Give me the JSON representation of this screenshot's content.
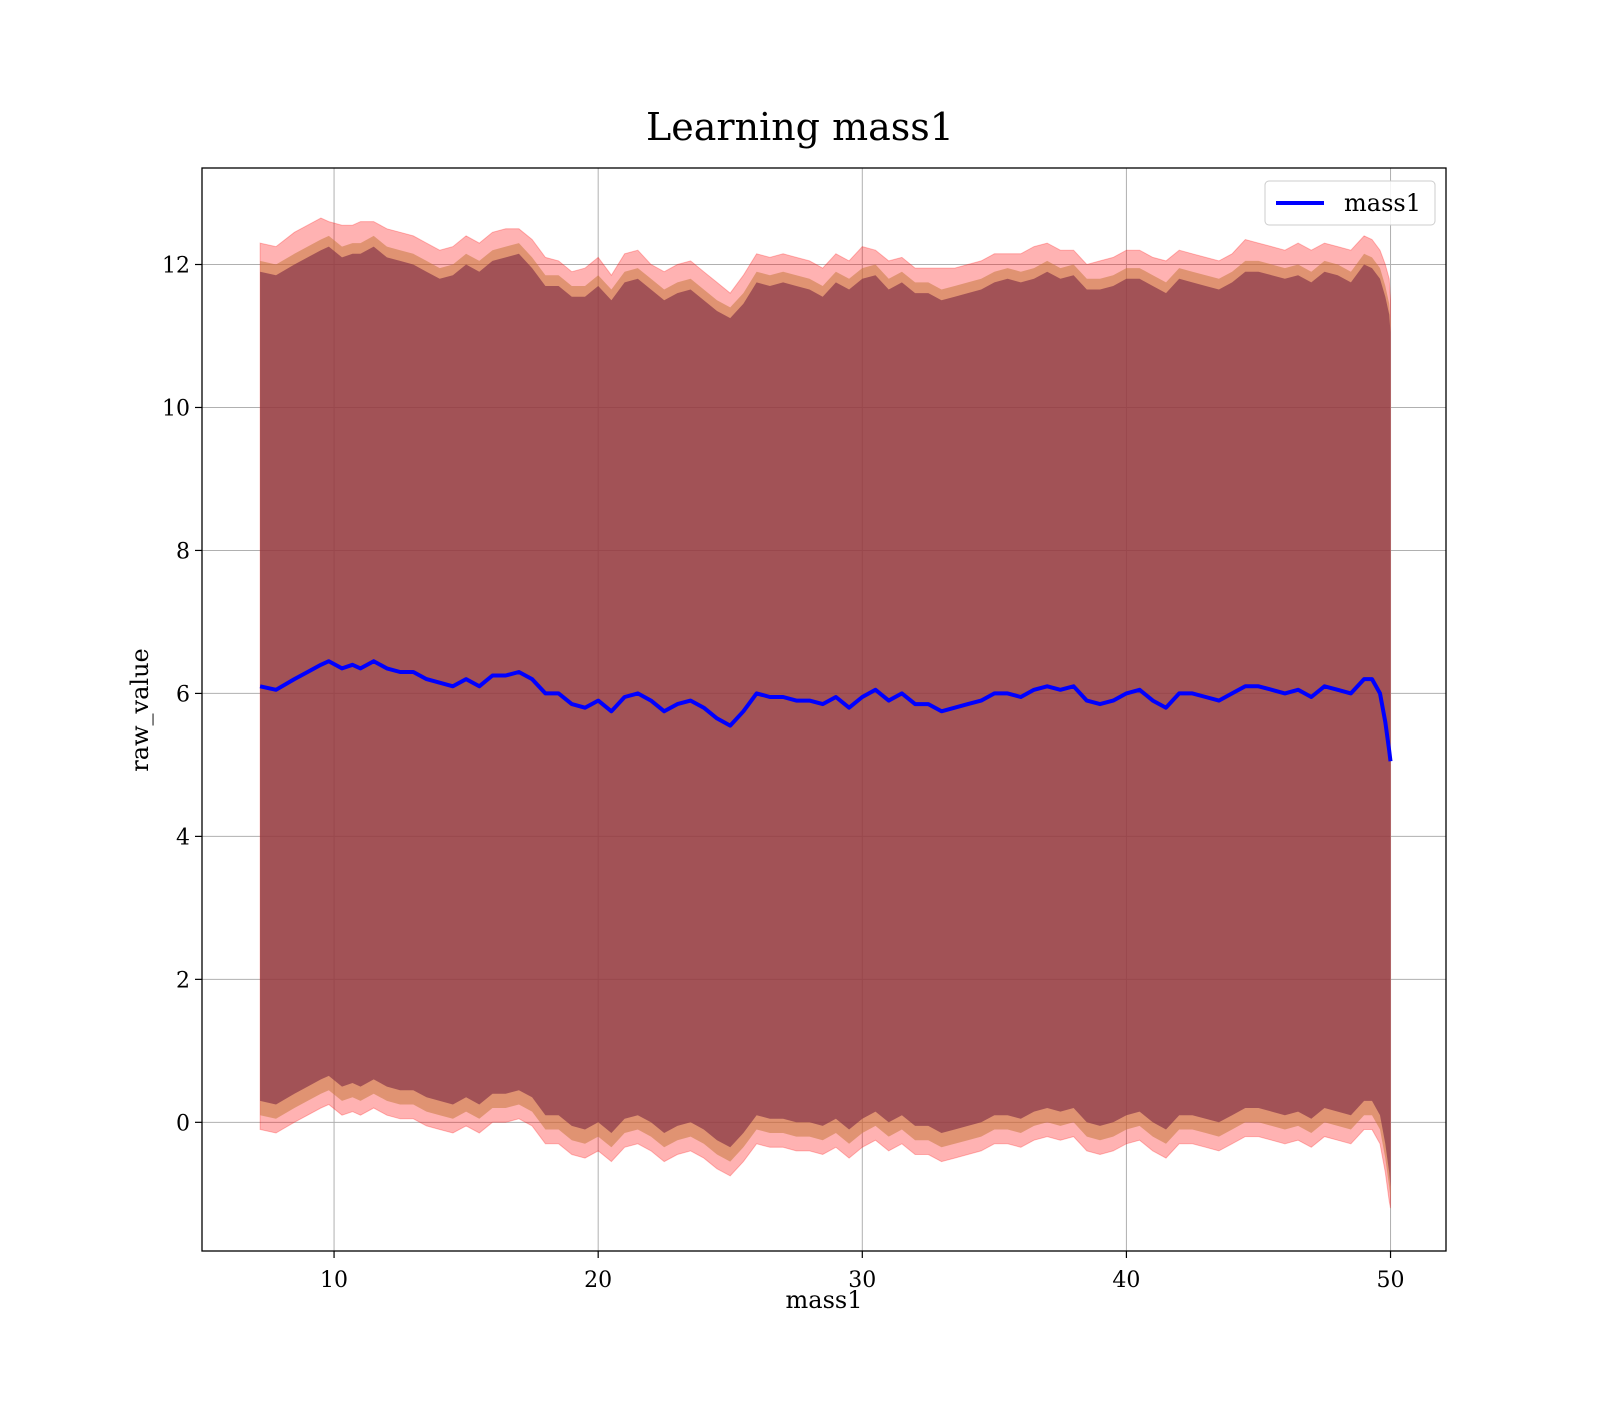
{
  "chart_data": {
    "type": "line",
    "title": "Learning mass1",
    "xlabel": "mass1",
    "ylabel": "raw_value",
    "xlim": [
      5,
      52.1
    ],
    "ylim": [
      -1.8,
      13.35
    ],
    "xticks": [
      10,
      20,
      30,
      40,
      50
    ],
    "yticks": [
      0,
      2,
      4,
      6,
      8,
      10,
      12
    ],
    "grid": true,
    "legend_position": "top-right",
    "colors": {
      "line": "#0000ff",
      "outer_band": "#ff0000",
      "mid_band": "#c67a3e",
      "inner_band": "#7d2a46",
      "grid": "#b0b0b0"
    },
    "series": [
      {
        "name": "mass1",
        "x": [
          7.2,
          7.8,
          8.5,
          9.0,
          9.5,
          9.8,
          10.3,
          10.7,
          11.0,
          11.5,
          12.0,
          12.5,
          13.0,
          13.5,
          14.0,
          14.5,
          15.0,
          15.5,
          16.0,
          16.5,
          17.0,
          17.5,
          18.0,
          18.5,
          19.0,
          19.5,
          20.0,
          20.5,
          21.0,
          21.5,
          22.0,
          22.5,
          23.0,
          23.5,
          24.0,
          24.5,
          25.0,
          25.5,
          26.0,
          26.5,
          27.0,
          27.5,
          28.0,
          28.5,
          29.0,
          29.5,
          30.0,
          30.5,
          31.0,
          31.5,
          32.0,
          32.5,
          33.0,
          33.5,
          34.0,
          34.5,
          35.0,
          35.5,
          36.0,
          36.5,
          37.0,
          37.5,
          38.0,
          38.5,
          39.0,
          39.5,
          40.0,
          40.5,
          41.0,
          41.5,
          42.0,
          42.5,
          43.0,
          43.5,
          44.0,
          44.5,
          45.0,
          45.5,
          46.0,
          46.5,
          47.0,
          47.5,
          48.0,
          48.5,
          49.0,
          49.3,
          49.6,
          49.8,
          49.95,
          50.0
        ],
        "values": [
          6.1,
          6.05,
          6.2,
          6.3,
          6.4,
          6.45,
          6.35,
          6.4,
          6.35,
          6.45,
          6.35,
          6.3,
          6.3,
          6.2,
          6.15,
          6.1,
          6.2,
          6.1,
          6.25,
          6.25,
          6.3,
          6.2,
          6.0,
          6.0,
          5.85,
          5.8,
          5.9,
          5.75,
          5.95,
          6.0,
          5.9,
          5.75,
          5.85,
          5.9,
          5.8,
          5.65,
          5.55,
          5.75,
          6.0,
          5.95,
          5.95,
          5.9,
          5.9,
          5.85,
          5.95,
          5.8,
          5.95,
          6.05,
          5.9,
          6.0,
          5.85,
          5.85,
          5.75,
          5.8,
          5.85,
          5.9,
          6.0,
          6.0,
          5.95,
          6.05,
          6.1,
          6.05,
          6.1,
          5.9,
          5.85,
          5.9,
          6.0,
          6.05,
          5.9,
          5.8,
          6.0,
          6.0,
          5.95,
          5.9,
          6.0,
          6.1,
          6.1,
          6.05,
          6.0,
          6.05,
          5.95,
          6.1,
          6.05,
          6.0,
          6.2,
          6.2,
          6.0,
          5.6,
          5.2,
          5.05
        ],
        "outer_upper": [
          12.3,
          12.25,
          12.45,
          12.55,
          12.65,
          12.6,
          12.55,
          12.55,
          12.6,
          12.6,
          12.5,
          12.45,
          12.4,
          12.3,
          12.2,
          12.25,
          12.4,
          12.3,
          12.45,
          12.5,
          12.5,
          12.35,
          12.1,
          12.05,
          11.9,
          11.95,
          12.1,
          11.85,
          12.15,
          12.2,
          12.0,
          11.9,
          12.0,
          12.05,
          11.9,
          11.75,
          11.6,
          11.85,
          12.15,
          12.1,
          12.15,
          12.1,
          12.05,
          11.95,
          12.15,
          12.05,
          12.25,
          12.2,
          12.05,
          12.1,
          11.95,
          11.95,
          11.95,
          11.95,
          12.0,
          12.05,
          12.15,
          12.15,
          12.15,
          12.25,
          12.3,
          12.2,
          12.2,
          12.0,
          12.05,
          12.1,
          12.2,
          12.2,
          12.1,
          12.05,
          12.2,
          12.15,
          12.1,
          12.05,
          12.15,
          12.35,
          12.3,
          12.25,
          12.2,
          12.3,
          12.2,
          12.3,
          12.25,
          12.2,
          12.4,
          12.35,
          12.2,
          12.0,
          11.8,
          11.5
        ],
        "mid_upper": [
          12.05,
          12.0,
          12.15,
          12.25,
          12.35,
          12.4,
          12.25,
          12.3,
          12.3,
          12.4,
          12.25,
          12.2,
          12.15,
          12.05,
          11.95,
          12.0,
          12.15,
          12.05,
          12.2,
          12.25,
          12.3,
          12.1,
          11.85,
          11.85,
          11.7,
          11.7,
          11.85,
          11.65,
          11.9,
          11.95,
          11.8,
          11.65,
          11.75,
          11.8,
          11.65,
          11.5,
          11.4,
          11.6,
          11.9,
          11.85,
          11.9,
          11.85,
          11.8,
          11.7,
          11.9,
          11.8,
          11.95,
          12.0,
          11.8,
          11.9,
          11.75,
          11.75,
          11.65,
          11.7,
          11.75,
          11.8,
          11.9,
          11.95,
          11.9,
          11.95,
          12.05,
          11.95,
          12.0,
          11.8,
          11.8,
          11.85,
          11.95,
          11.95,
          11.85,
          11.75,
          11.95,
          11.9,
          11.85,
          11.8,
          11.9,
          12.05,
          12.05,
          12.0,
          11.95,
          12.0,
          11.9,
          12.05,
          12.0,
          11.9,
          12.15,
          12.1,
          11.95,
          11.7,
          11.45,
          11.2
        ],
        "inner_upper": [
          11.9,
          11.85,
          12.0,
          12.1,
          12.2,
          12.25,
          12.1,
          12.15,
          12.15,
          12.25,
          12.1,
          12.05,
          12.0,
          11.9,
          11.8,
          11.85,
          12.0,
          11.9,
          12.05,
          12.1,
          12.15,
          11.95,
          11.7,
          11.7,
          11.55,
          11.55,
          11.7,
          11.5,
          11.75,
          11.8,
          11.65,
          11.5,
          11.6,
          11.65,
          11.5,
          11.35,
          11.25,
          11.45,
          11.75,
          11.7,
          11.75,
          11.7,
          11.65,
          11.55,
          11.75,
          11.65,
          11.8,
          11.85,
          11.65,
          11.75,
          11.6,
          11.6,
          11.5,
          11.55,
          11.6,
          11.65,
          11.75,
          11.8,
          11.75,
          11.8,
          11.9,
          11.8,
          11.85,
          11.65,
          11.65,
          11.7,
          11.8,
          11.8,
          11.7,
          11.6,
          11.8,
          11.75,
          11.7,
          11.65,
          11.75,
          11.9,
          11.9,
          11.85,
          11.8,
          11.85,
          11.75,
          11.9,
          11.85,
          11.75,
          12.0,
          11.95,
          11.8,
          11.55,
          11.3,
          11.05
        ],
        "inner_lower": [
          0.3,
          0.25,
          0.4,
          0.5,
          0.6,
          0.65,
          0.5,
          0.55,
          0.5,
          0.6,
          0.5,
          0.45,
          0.45,
          0.35,
          0.3,
          0.25,
          0.35,
          0.25,
          0.4,
          0.4,
          0.45,
          0.35,
          0.1,
          0.1,
          -0.05,
          -0.1,
          0.0,
          -0.15,
          0.05,
          0.1,
          0.0,
          -0.15,
          -0.05,
          0.0,
          -0.1,
          -0.25,
          -0.35,
          -0.15,
          0.1,
          0.05,
          0.05,
          0.0,
          0.0,
          -0.05,
          0.05,
          -0.1,
          0.05,
          0.15,
          0.0,
          0.1,
          -0.05,
          -0.05,
          -0.15,
          -0.1,
          -0.05,
          0.0,
          0.1,
          0.1,
          0.05,
          0.15,
          0.2,
          0.15,
          0.2,
          0.0,
          -0.05,
          0.0,
          0.1,
          0.15,
          0.0,
          -0.1,
          0.1,
          0.1,
          0.05,
          0.0,
          0.1,
          0.2,
          0.2,
          0.15,
          0.1,
          0.15,
          0.05,
          0.2,
          0.15,
          0.1,
          0.3,
          0.3,
          0.1,
          -0.3,
          -0.7,
          -0.9
        ],
        "mid_lower": [
          0.1,
          0.05,
          0.2,
          0.3,
          0.4,
          0.45,
          0.3,
          0.35,
          0.3,
          0.4,
          0.3,
          0.25,
          0.25,
          0.15,
          0.1,
          0.05,
          0.15,
          0.05,
          0.2,
          0.2,
          0.25,
          0.15,
          -0.1,
          -0.1,
          -0.25,
          -0.3,
          -0.2,
          -0.35,
          -0.15,
          -0.1,
          -0.2,
          -0.35,
          -0.25,
          -0.2,
          -0.3,
          -0.45,
          -0.55,
          -0.35,
          -0.1,
          -0.15,
          -0.15,
          -0.2,
          -0.2,
          -0.25,
          -0.15,
          -0.3,
          -0.15,
          -0.05,
          -0.2,
          -0.1,
          -0.25,
          -0.25,
          -0.35,
          -0.3,
          -0.25,
          -0.2,
          -0.1,
          -0.1,
          -0.15,
          -0.05,
          0.0,
          -0.05,
          0.0,
          -0.2,
          -0.25,
          -0.2,
          -0.1,
          -0.05,
          -0.2,
          -0.3,
          -0.1,
          -0.1,
          -0.15,
          -0.2,
          -0.1,
          0.0,
          0.0,
          -0.05,
          -0.1,
          -0.05,
          -0.15,
          0.0,
          -0.05,
          -0.1,
          0.1,
          0.1,
          -0.1,
          -0.5,
          -0.9,
          -1.05
        ],
        "outer_lower": [
          -0.1,
          -0.15,
          0.0,
          0.1,
          0.2,
          0.25,
          0.1,
          0.15,
          0.1,
          0.2,
          0.1,
          0.05,
          0.05,
          -0.05,
          -0.1,
          -0.15,
          -0.05,
          -0.15,
          0.0,
          0.0,
          0.05,
          -0.05,
          -0.3,
          -0.3,
          -0.45,
          -0.5,
          -0.4,
          -0.55,
          -0.35,
          -0.3,
          -0.4,
          -0.55,
          -0.45,
          -0.4,
          -0.5,
          -0.65,
          -0.75,
          -0.55,
          -0.3,
          -0.35,
          -0.35,
          -0.4,
          -0.4,
          -0.45,
          -0.35,
          -0.5,
          -0.35,
          -0.25,
          -0.4,
          -0.3,
          -0.45,
          -0.45,
          -0.55,
          -0.5,
          -0.45,
          -0.4,
          -0.3,
          -0.3,
          -0.35,
          -0.25,
          -0.2,
          -0.25,
          -0.2,
          -0.4,
          -0.45,
          -0.4,
          -0.3,
          -0.25,
          -0.4,
          -0.5,
          -0.3,
          -0.3,
          -0.35,
          -0.4,
          -0.3,
          -0.2,
          -0.2,
          -0.25,
          -0.3,
          -0.25,
          -0.35,
          -0.2,
          -0.25,
          -0.3,
          -0.1,
          -0.1,
          -0.3,
          -0.7,
          -1.1,
          -1.2
        ]
      }
    ]
  }
}
